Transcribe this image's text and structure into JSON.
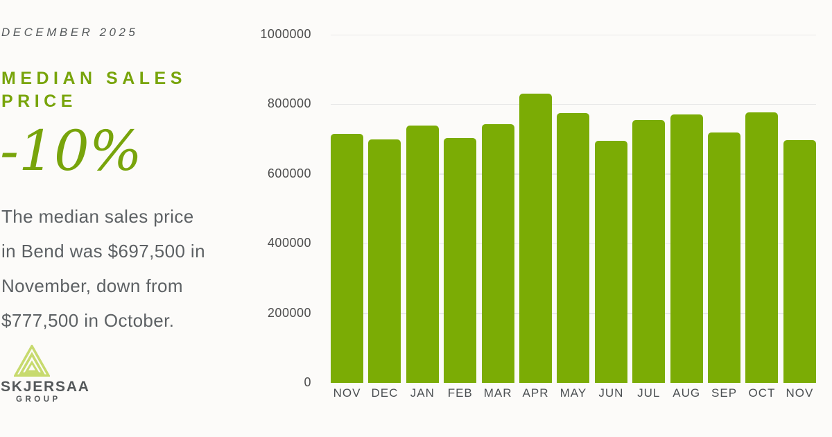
{
  "colors": {
    "background": "#fcfbf9",
    "accent_green": "#78a40b",
    "bar_green": "#7bac05",
    "logo_lime": "#c7da6e",
    "text_gray": "#5d6164",
    "gridline": "#e8e8e8"
  },
  "panel": {
    "date": "DECEMBER 2025",
    "title": "MEDIAN SALES PRICE",
    "delta": "-10%",
    "description": "The median sales price in Bend was $697,500 in November, down from $777,500 in October.",
    "description_lines": [
      "The median sales price",
      "in Bend was $697,500 in",
      "November, down from",
      "$777,500 in October."
    ],
    "logo": {
      "name": "SKJERSAA",
      "sub": "GROUP",
      "icon": "mountain-triangle-icon"
    }
  },
  "chart_data": {
    "type": "bar",
    "title": "",
    "xlabel": "",
    "ylabel": "",
    "categories": [
      "NOV",
      "DEC",
      "JAN",
      "FEB",
      "MAR",
      "APR",
      "MAY",
      "JUN",
      "JUL",
      "AUG",
      "SEP",
      "OCT",
      "NOV"
    ],
    "values": [
      715000,
      700000,
      740000,
      702500,
      742500,
      830000,
      775000,
      695000,
      755000,
      770000,
      720000,
      777500,
      697500
    ],
    "ylim": [
      0,
      1000000
    ],
    "yticks": [
      {
        "label": "1000000",
        "value": 1000000
      },
      {
        "label": "800000",
        "value": 800000
      },
      {
        "label": "600000",
        "value": 600000
      },
      {
        "label": "400000",
        "value": 400000
      },
      {
        "label": "200000",
        "value": 200000
      },
      {
        "label": "0",
        "value": 0
      }
    ],
    "grid": true,
    "legend": false,
    "bar_color": "#7bac05"
  }
}
